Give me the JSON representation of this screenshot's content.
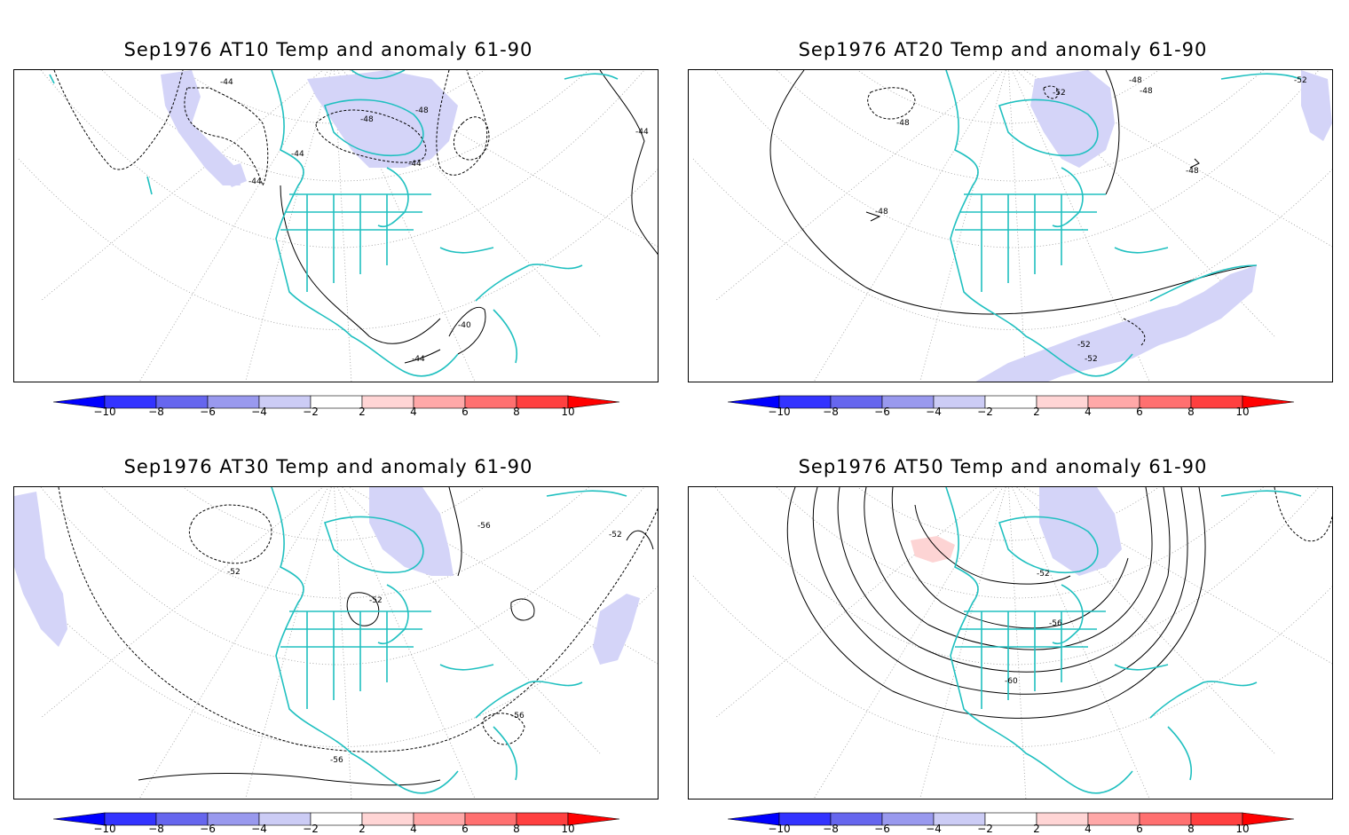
{
  "panels": [
    {
      "title": "Sep1976 AT10 Temp and anomaly 61-90",
      "contour_labels": [
        "-44",
        "-48",
        "-44",
        "-48",
        "-44",
        "-44",
        "-44",
        "-40",
        "-44"
      ]
    },
    {
      "title": "Sep1976 AT20 Temp and anomaly 61-90",
      "contour_labels": [
        "-48",
        "-52",
        "-48",
        "-48",
        "-52",
        "-48",
        "-48",
        "-52",
        "-52"
      ]
    },
    {
      "title": "Sep1976 AT30 Temp and anomaly 61-90",
      "contour_labels": [
        "-52",
        "-56",
        "-52",
        "-52",
        "-56",
        "-56"
      ]
    },
    {
      "title": "Sep1976 AT50 Temp and anomaly 61-90",
      "contour_labels": [
        "-52",
        "-56",
        "-60"
      ]
    }
  ],
  "colorbar": {
    "ticks": [
      "-10",
      "-8",
      "-6",
      "-4",
      "-2",
      "2",
      "4",
      "6",
      "8",
      "10"
    ],
    "colors": [
      "#0000ff",
      "#3333ff",
      "#6666ee",
      "#9999ee",
      "#ccccf5",
      "#ffffff",
      "#ffd5d5",
      "#ffa8a8",
      "#ff7070",
      "#ff4040",
      "#ff0000"
    ]
  },
  "colors": {
    "coastline": "#20c0c0",
    "negative_anomaly": "#d4d4f8",
    "positive_anomaly": "#fdd4d4",
    "contour": "#000000",
    "grid": "#999999"
  }
}
